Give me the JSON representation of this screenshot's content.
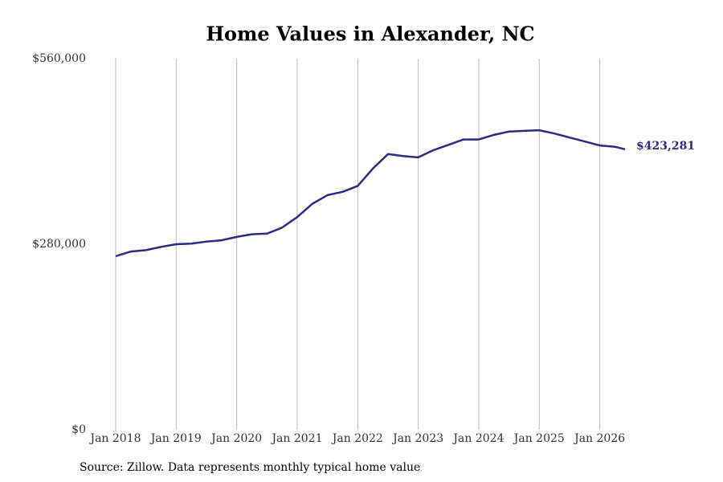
{
  "chart_data": {
    "type": "line",
    "title": "Home Values in Alexander, NC",
    "source": "Source: Zillow. Data represents monthly typical home value",
    "x": [
      "2018-01",
      "2018-04",
      "2018-07",
      "2018-10",
      "2019-01",
      "2019-04",
      "2019-07",
      "2019-10",
      "2020-01",
      "2020-04",
      "2020-07",
      "2020-10",
      "2021-01",
      "2021-04",
      "2021-07",
      "2021-10",
      "2022-01",
      "2022-04",
      "2022-07",
      "2022-10",
      "2023-01",
      "2023-04",
      "2023-07",
      "2023-10",
      "2024-01",
      "2024-04",
      "2024-07",
      "2024-10",
      "2025-01",
      "2025-04",
      "2025-07",
      "2025-10",
      "2026-01",
      "2026-04",
      "2026-06"
    ],
    "values": [
      262000,
      269000,
      271000,
      276000,
      280000,
      281000,
      284000,
      286000,
      291000,
      295000,
      296000,
      305000,
      321000,
      341000,
      354000,
      359000,
      368000,
      394000,
      416000,
      413000,
      411000,
      422000,
      430000,
      438000,
      438000,
      445000,
      450000,
      451000,
      452000,
      447000,
      441000,
      435000,
      429000,
      427000,
      423281
    ],
    "value_labels": [
      null,
      null,
      null,
      null,
      null,
      null,
      null,
      null,
      null,
      null,
      null,
      null,
      null,
      null,
      null,
      null,
      null,
      null,
      null,
      null,
      null,
      null,
      null,
      null,
      null,
      null,
      null,
      null,
      null,
      null,
      null,
      null,
      null,
      null,
      "$423,281"
    ],
    "color": "#2e2a85",
    "xlim": [
      "2018-01",
      "2026-06"
    ],
    "xticks": [
      {
        "value": "2018-01",
        "label": "Jan 2018"
      },
      {
        "value": "2019-01",
        "label": "Jan 2019"
      },
      {
        "value": "2020-01",
        "label": "Jan 2020"
      },
      {
        "value": "2021-01",
        "label": "Jan 2021"
      },
      {
        "value": "2022-01",
        "label": "Jan 2022"
      },
      {
        "value": "2023-01",
        "label": "Jan 2023"
      },
      {
        "value": "2024-01",
        "label": "Jan 2024"
      },
      {
        "value": "2025-01",
        "label": "Jan 2025"
      },
      {
        "value": "2026-01",
        "label": "Jan 2026"
      }
    ],
    "ylim": [
      0,
      560000
    ],
    "yticks": [
      {
        "value": 0,
        "label": "$0"
      },
      {
        "value": 280000,
        "label": "$280,000"
      },
      {
        "value": 560000,
        "label": "$560,000"
      }
    ],
    "grid": "x"
  }
}
